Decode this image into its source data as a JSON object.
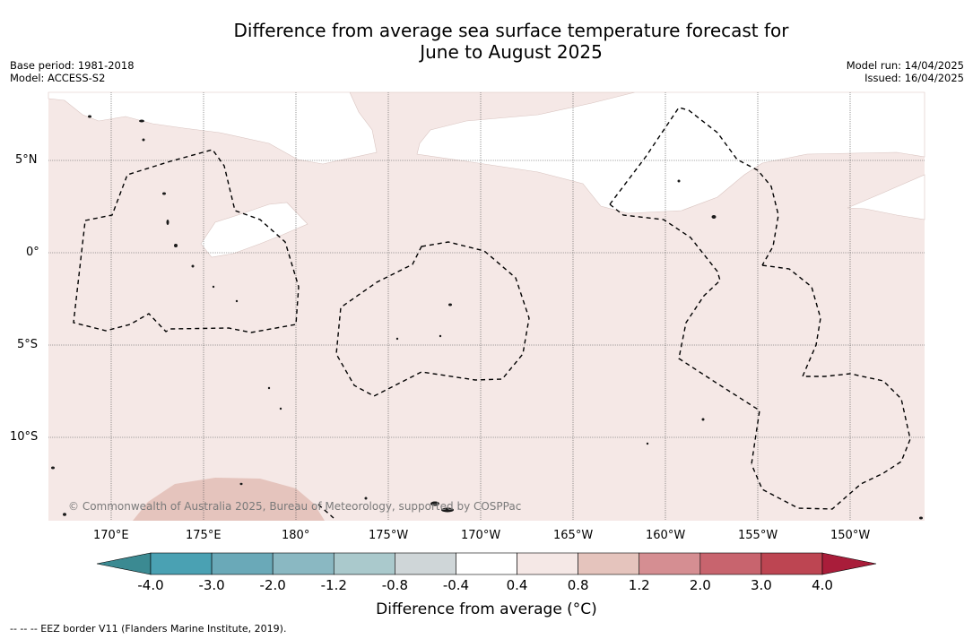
{
  "title_line1": "Difference from average sea surface temperature forecast for",
  "title_line2": "June to August 2025",
  "meta_left": {
    "base_period": "Base period: 1981-2018",
    "model": "Model: ACCESS-S2"
  },
  "meta_right": {
    "model_run": "Model run: 14/04/2025",
    "issued": "Issued: 16/04/2025"
  },
  "map": {
    "lon_labels": [
      "170°E",
      "175°E",
      "180°",
      "175°W",
      "170°W",
      "165°W",
      "160°W",
      "155°W",
      "150°W"
    ],
    "lat_labels": [
      "5°N",
      "0°",
      "5°S",
      "10°S"
    ],
    "copyright": "© Commonwealth of Australia 2025, Bureau of Meteorology, supported by COSPPac"
  },
  "colorbar": {
    "labels": [
      "-4.0",
      "-3.0",
      "-2.0",
      "-1.2",
      "-0.8",
      "-0.4",
      "0.4",
      "0.8",
      "1.2",
      "2.0",
      "3.0",
      "4.0"
    ],
    "colors": [
      "#3b8a92",
      "#4aa1b3",
      "#6aa9b8",
      "#8ab8c2",
      "#aac9cc",
      "#cfd6d8",
      "#ffffff",
      "#f5e8e6",
      "#e5c4bd",
      "#d58e92",
      "#c8646e",
      "#bd4552",
      "#a91d3a"
    ],
    "title": "Difference from average (°C)"
  },
  "footnote": "--  --  -- EEZ border V11 (Flanders Marine Institute, 2019)."
}
